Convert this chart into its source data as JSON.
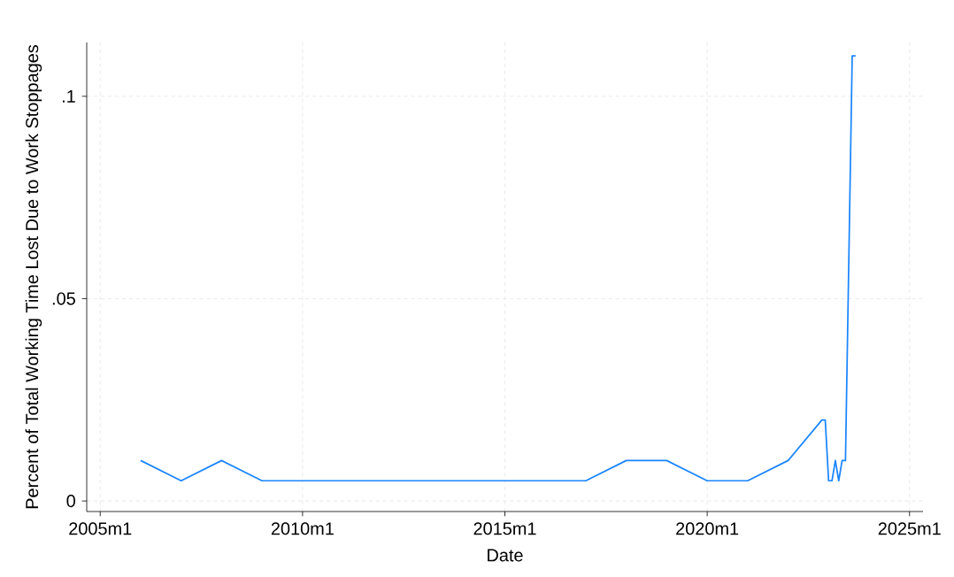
{
  "chart_data": {
    "type": "line",
    "xlabel": "Date",
    "ylabel": "Percent of Total Working Time Lost Due to Work Stoppages",
    "x": [
      "2006-01",
      "2007-01",
      "2008-01",
      "2009-01",
      "2017-01",
      "2018-01",
      "2019-01",
      "2020-01",
      "2021-01",
      "2022-01",
      "2022-11",
      "2022-12",
      "2023-01",
      "2023-02",
      "2023-03",
      "2023-04",
      "2023-05",
      "2023-06",
      "2023-08",
      "2023-09"
    ],
    "series": [
      {
        "color": "#1a85ff",
        "values": [
          0.01,
          0.005,
          0.01,
          0.005,
          0.005,
          0.01,
          0.01,
          0.005,
          0.005,
          0.01,
          0.02,
          0.02,
          0.005,
          0.005,
          0.01,
          0.005,
          0.01,
          0.01,
          0.11,
          0.11
        ]
      }
    ],
    "xlim": [
      "2004-09",
      "2025-05"
    ],
    "xticks": [
      {
        "value": "2005-01",
        "label": "2005m1"
      },
      {
        "value": "2010-01",
        "label": "2010m1"
      },
      {
        "value": "2015-01",
        "label": "2015m1"
      },
      {
        "value": "2020-01",
        "label": "2020m1"
      },
      {
        "value": "2025-01",
        "label": "2025m1"
      }
    ],
    "ylim": [
      -0.0026,
      0.1133
    ],
    "yticks": [
      {
        "value": 0,
        "label": "0"
      },
      {
        "value": 0.05,
        "label": ".05"
      },
      {
        "value": 0.1,
        "label": ".1"
      }
    ],
    "grid": true,
    "marker": "none",
    "line_style": "solid"
  }
}
